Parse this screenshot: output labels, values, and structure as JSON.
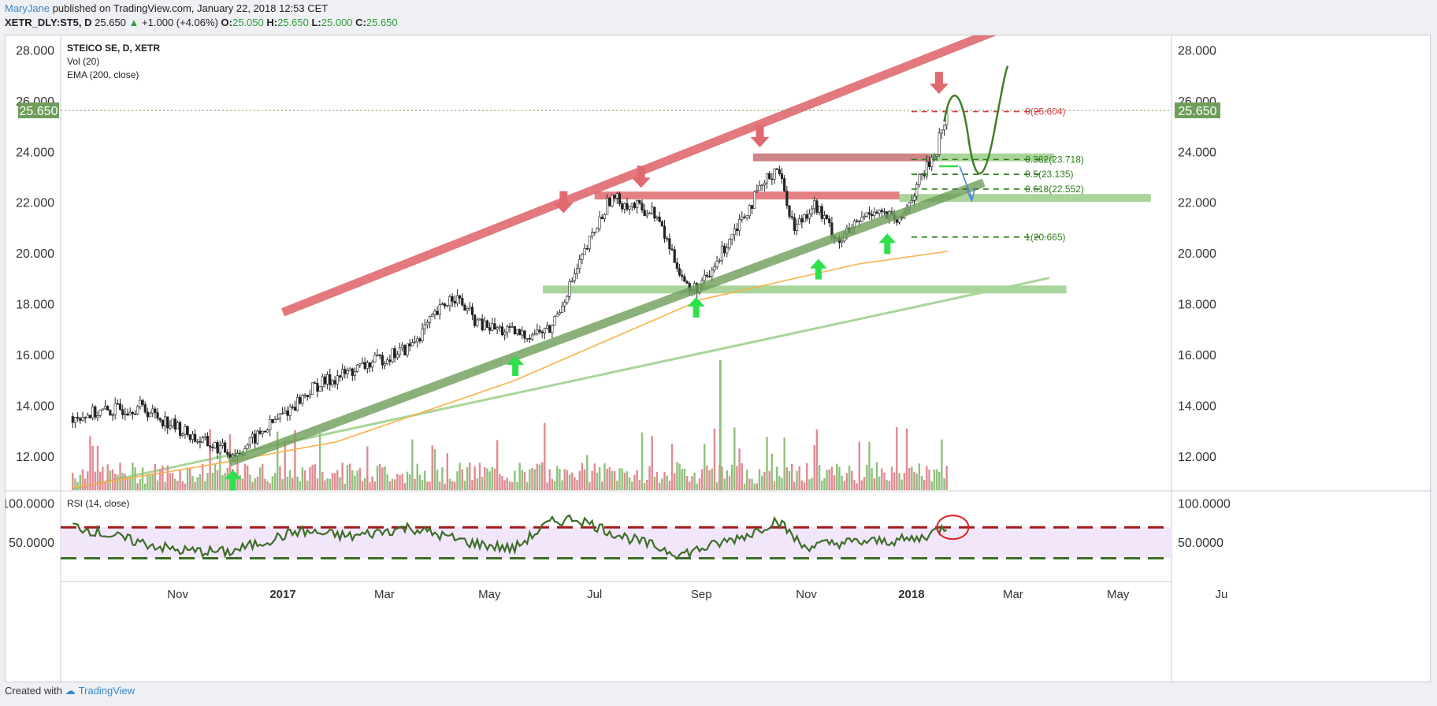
{
  "header": {
    "author": "MaryJane",
    "published": "published on TradingView.com, January 22, 2018 12:53 CET",
    "symbol": "XETR_DLY:ST5, D",
    "last": "25.650",
    "change": "+1.000 (+4.06%)",
    "o_label": "O:",
    "o_value": "25.050",
    "h_label": "H:",
    "h_value": "25.650",
    "l_label": "L:",
    "l_value": "25.000",
    "c_label": "C:",
    "c_value": "25.650"
  },
  "legend": {
    "line1": "STEICO SE, D, XETR",
    "line2": "Vol (20)",
    "line3": "EMA (200, close)",
    "rsi": "RSI (14, close)"
  },
  "footer": {
    "created": "Created with",
    "brand": "TradingView"
  },
  "colors": {
    "resistance": "#e06a6f",
    "support": "#6e9e5a",
    "support_light": "#a9d59a",
    "ema": "#f7b24a",
    "fib": "#2e7d1e",
    "fib_zero": "#d9363e",
    "up_arrow": "#2ee04a",
    "down_arrow": "#e06a6f",
    "rsi_line": "#3c6e26",
    "rsi_band": "#f2e6fb",
    "price_tag": "#6e9e5a"
  },
  "chart_data": {
    "type": "candlestick",
    "title": "STEICO SE, D, XETR",
    "price_axis": {
      "ylim": [
        10.7,
        28.6
      ],
      "ticks": [
        12,
        14,
        16,
        18,
        20,
        22,
        24,
        26,
        28
      ],
      "tick_labels": [
        "12.000",
        "14.000",
        "16.000",
        "18.000",
        "20.000",
        "22.000",
        "24.000",
        "26.000",
        "28.000"
      ],
      "last_price_label": "25.650"
    },
    "time_axis": {
      "labels": [
        "Nov",
        "2017",
        "Mar",
        "May",
        "Jul",
        "Sep",
        "Nov",
        "2018",
        "Mar",
        "May",
        "Ju"
      ],
      "bold_labels": [
        "2017",
        "2018"
      ]
    },
    "close_path": {
      "x": [
        "2016-09-01",
        "2016-10-10",
        "2016-11-15",
        "2016-12-05",
        "2017-01-20",
        "2017-03-15",
        "2017-04-10",
        "2017-04-25",
        "2017-05-20",
        "2017-06-05",
        "2017-06-25",
        "2017-07-10",
        "2017-08-05",
        "2017-08-25",
        "2017-09-05",
        "2017-09-20",
        "2017-10-15",
        "2017-10-25",
        "2017-11-05",
        "2017-11-20",
        "2017-12-10",
        "2017-12-25",
        "2018-01-05",
        "2018-01-15",
        "2018-01-22"
      ],
      "y": [
        13.6,
        14.0,
        12.6,
        12.1,
        14.8,
        16.3,
        18.4,
        17.2,
        16.8,
        17.0,
        20.0,
        22.2,
        21.6,
        18.5,
        19.0,
        21.0,
        23.5,
        21.0,
        22.0,
        20.5,
        21.8,
        21.2,
        22.8,
        24.0,
        25.65
      ]
    },
    "volume": {
      "label": "Vol (20)",
      "spike_date": "2017-09-12"
    },
    "ema200": {
      "label": "EMA (200, close)",
      "x": [
        "2016-09-01",
        "2016-11-20",
        "2017-02-01",
        "2017-05-15",
        "2017-09-01",
        "2017-12-01",
        "2018-01-22"
      ],
      "y": [
        10.8,
        11.7,
        12.6,
        15.0,
        18.2,
        19.6,
        20.1
      ]
    },
    "fibonacci": [
      {
        "label": "0(25.604)",
        "value": 25.604
      },
      {
        "label": "0.382(23.718)",
        "value": 23.718
      },
      {
        "label": "0.5(23.135)",
        "value": 23.135
      },
      {
        "label": "0.618(22.552)",
        "value": 22.552
      },
      {
        "label": "1(20.665)",
        "value": 20.665
      }
    ],
    "rsi": {
      "label": "RSI (14, close)",
      "ylim": [
        0,
        115
      ],
      "tick_labels": [
        "100.0000",
        "50.0000"
      ],
      "ticks": [
        100,
        50
      ],
      "band": [
        30,
        70
      ],
      "x": [
        "2016-09-01",
        "2016-10-01",
        "2016-11-01",
        "2016-12-01",
        "2017-01-10",
        "2017-02-10",
        "2017-03-15",
        "2017-04-20",
        "2017-05-15",
        "2017-06-05",
        "2017-06-20",
        "2017-07-15",
        "2017-08-20",
        "2017-09-10",
        "2017-09-30",
        "2017-10-15",
        "2017-10-30",
        "2017-11-20",
        "2017-12-15",
        "2018-01-05",
        "2018-01-22"
      ],
      "y": [
        72,
        55,
        40,
        38,
        65,
        58,
        70,
        50,
        42,
        76,
        82,
        60,
        35,
        48,
        62,
        80,
        45,
        50,
        52,
        55,
        72
      ]
    }
  }
}
